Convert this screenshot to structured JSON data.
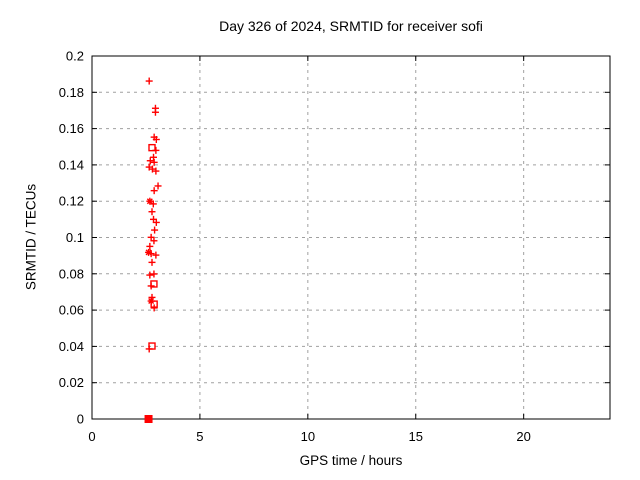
{
  "figure": {
    "background": "#ffffff"
  },
  "chart_data": {
    "type": "scatter",
    "title": "Day 326 of 2024, SRMTID for receiver sofi",
    "xlabel": "GPS time / hours",
    "ylabel": "SRMTID / TECUs",
    "xlim": [
      0,
      24
    ],
    "ylim": [
      0,
      0.2
    ],
    "x_tick_values": [
      0,
      5,
      10,
      15,
      20
    ],
    "x_tick_labels": [
      "0",
      "5",
      "10",
      "15",
      "20"
    ],
    "y_tick_values": [
      0,
      0.02,
      0.04,
      0.06,
      0.08,
      0.1,
      0.12,
      0.14,
      0.16,
      0.18,
      0.2
    ],
    "y_tick_labels": [
      "0",
      "0.02",
      "0.04",
      "0.06",
      "0.08",
      "0.1",
      "0.12",
      "0.14",
      "0.16",
      "0.18",
      "0.2"
    ],
    "grid": "dashed, at every tick, mirrored ticks on all four borders",
    "legend": "none",
    "colors": {
      "points": "#ff0000",
      "grid": "#a0a0a0",
      "axis": "#000000",
      "text": "#000000"
    },
    "series": [
      {
        "name": "srmtid-plus-markers",
        "marker": "plus",
        "points": [
          [
            2.65,
            0.1862
          ],
          [
            2.94,
            0.1712
          ],
          [
            2.94,
            0.169
          ],
          [
            2.88,
            0.1553
          ],
          [
            2.98,
            0.154
          ],
          [
            2.96,
            0.148
          ],
          [
            2.85,
            0.1442
          ],
          [
            2.7,
            0.1423
          ],
          [
            2.88,
            0.1414
          ],
          [
            2.65,
            0.1388
          ],
          [
            2.8,
            0.1377
          ],
          [
            2.96,
            0.1366
          ],
          [
            3.06,
            0.1284
          ],
          [
            2.88,
            0.1258
          ],
          [
            2.84,
            0.1185
          ],
          [
            2.78,
            0.1142
          ],
          [
            2.85,
            0.11
          ],
          [
            2.98,
            0.1083
          ],
          [
            2.9,
            0.1041
          ],
          [
            2.74,
            0.1001
          ],
          [
            2.87,
            0.0982
          ],
          [
            2.68,
            0.0951
          ],
          [
            2.74,
            0.0911
          ],
          [
            2.96,
            0.0903
          ],
          [
            2.78,
            0.0863
          ],
          [
            2.87,
            0.0799
          ],
          [
            2.68,
            0.0793
          ],
          [
            2.74,
            0.0733
          ],
          [
            2.78,
            0.067
          ],
          [
            2.88,
            0.0612
          ],
          [
            2.65,
            0.0386
          ]
        ]
      },
      {
        "name": "srmtid-asterisk-markers",
        "marker": "asterisk",
        "points": [
          [
            2.68,
            0.12
          ],
          [
            2.62,
            0.0918
          ],
          [
            2.74,
            0.065
          ]
        ]
      },
      {
        "name": "srmtid-open-square-markers",
        "marker": "square-open",
        "points": [
          [
            2.78,
            0.1495
          ],
          [
            2.87,
            0.0744
          ],
          [
            2.88,
            0.0633
          ],
          [
            2.78,
            0.0402
          ]
        ]
      },
      {
        "name": "srmtid-filled-square-markers",
        "marker": "square-filled",
        "points": [
          [
            2.62,
            0.0
          ]
        ]
      }
    ]
  }
}
